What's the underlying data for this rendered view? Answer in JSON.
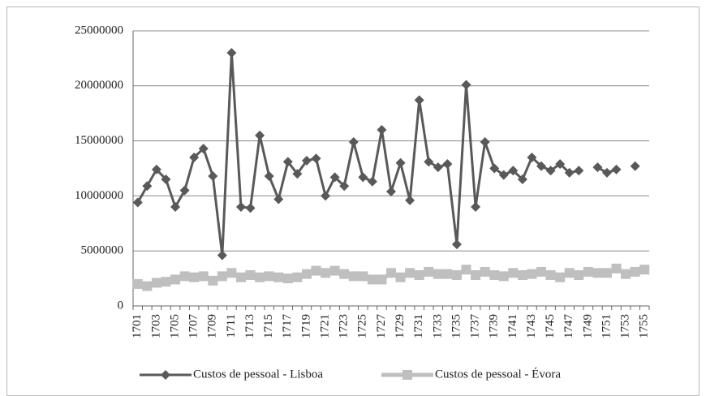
{
  "chart_data": {
    "type": "line",
    "categories": [
      "1701",
      null,
      "1703",
      null,
      "1705",
      null,
      "1707",
      null,
      "1709",
      null,
      "1711",
      null,
      "1713",
      null,
      "1715",
      null,
      "1717",
      null,
      "1719",
      null,
      "1721",
      null,
      "1723",
      null,
      "1725",
      null,
      "1727",
      null,
      "1729",
      null,
      "1731",
      null,
      "1733",
      null,
      "1735",
      null,
      "1737",
      null,
      "1739",
      null,
      "1741",
      null,
      "1743",
      null,
      "1745",
      null,
      "1747",
      null,
      "1749",
      null,
      "1751",
      null,
      "1753",
      null,
      "1755"
    ],
    "series": [
      {
        "name": "Custos de pessoal - Lisboa",
        "color": "#595959",
        "marker": "diamond",
        "values": [
          9400000,
          10900000,
          12400000,
          11500000,
          9000000,
          10500000,
          13500000,
          14300000,
          11800000,
          4600000,
          23000000,
          9000000,
          8900000,
          15500000,
          11800000,
          9700000,
          13100000,
          12000000,
          13200000,
          13400000,
          10000000,
          11700000,
          10900000,
          14900000,
          11700000,
          11300000,
          16000000,
          10400000,
          13000000,
          9600000,
          18700000,
          13100000,
          12600000,
          12900000,
          5600000,
          20100000,
          9000000,
          14900000,
          12500000,
          11900000,
          12300000,
          11500000,
          13500000,
          12700000,
          12300000,
          12900000,
          12100000,
          12300000,
          null,
          12600000,
          12100000,
          12400000,
          null,
          12700000,
          null
        ]
      },
      {
        "name": "Custos de pessoal - Évora",
        "color": "#bfbfbf",
        "marker": "square",
        "values": [
          2000000,
          1800000,
          2100000,
          2200000,
          2400000,
          2700000,
          2600000,
          2700000,
          2300000,
          2700000,
          3000000,
          2600000,
          2800000,
          2600000,
          2700000,
          2600000,
          2500000,
          2600000,
          2900000,
          3200000,
          3000000,
          3200000,
          2900000,
          2700000,
          2700000,
          2400000,
          2400000,
          3000000,
          2600000,
          3000000,
          2800000,
          3100000,
          2900000,
          2900000,
          2800000,
          3300000,
          2800000,
          3100000,
          2800000,
          2700000,
          3000000,
          2800000,
          2900000,
          3100000,
          2800000,
          2600000,
          3000000,
          2800000,
          3100000,
          3000000,
          3000000,
          3400000,
          2900000,
          3100000,
          3300000
        ]
      }
    ],
    "ylim": [
      0,
      25000000
    ],
    "yticks": [
      0,
      5000000,
      10000000,
      15000000,
      20000000,
      25000000
    ],
    "grid": true,
    "legend": "bottom"
  }
}
